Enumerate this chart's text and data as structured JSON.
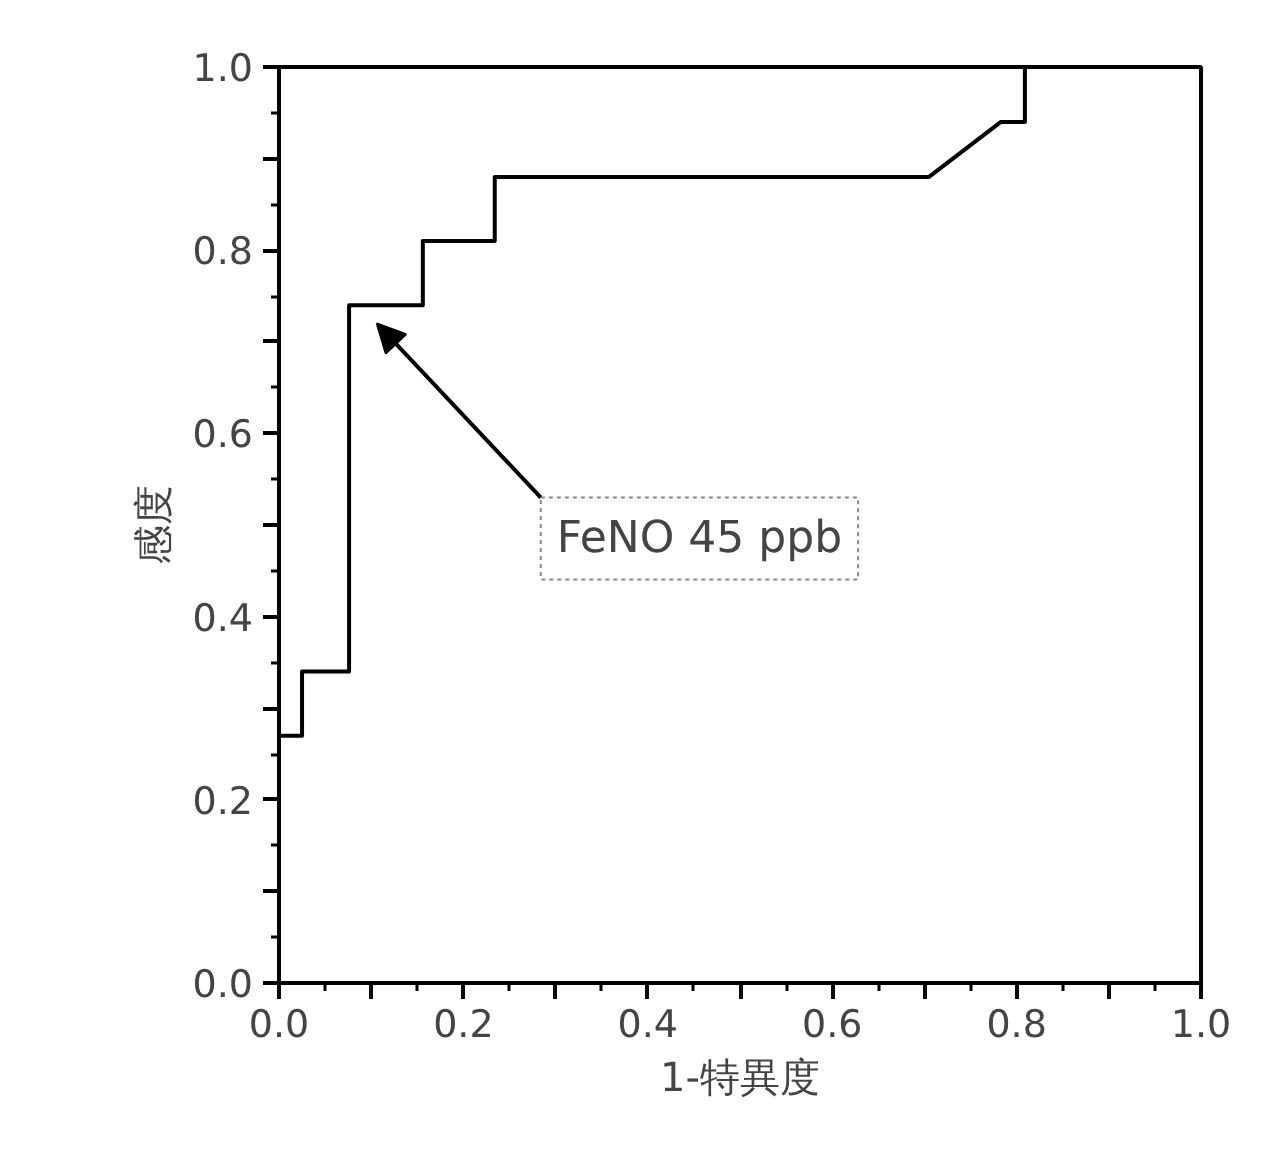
{
  "chart_data": {
    "type": "line",
    "x": [
      0,
      0.025,
      0.025,
      0.076,
      0.076,
      0.156,
      0.156,
      0.234,
      0.234,
      0.705,
      0.783,
      0.809,
      0.809,
      1.0
    ],
    "series": [
      {
        "color": "#000000",
        "values": [
          0.27,
          0.27,
          0.34,
          0.34,
          0.74,
          0.74,
          0.81,
          0.81,
          0.88,
          0.88,
          0.94,
          0.94,
          1.0,
          1.0
        ]
      }
    ],
    "xlim": [
      0,
      1
    ],
    "ylim": [
      0,
      1
    ],
    "xticks": [
      {
        "value": 0,
        "label": "0.0"
      },
      {
        "value": 0.1,
        "label": null
      },
      {
        "value": 0.2,
        "label": "0.2"
      },
      {
        "value": 0.3,
        "label": null
      },
      {
        "value": 0.4,
        "label": "0.4"
      },
      {
        "value": 0.5,
        "label": null
      },
      {
        "value": 0.6,
        "label": "0.6"
      },
      {
        "value": 0.7,
        "label": null
      },
      {
        "value": 0.8,
        "label": "0.8"
      },
      {
        "value": 0.9,
        "label": null
      },
      {
        "value": 1.0,
        "label": "1.0"
      }
    ],
    "yticks": [
      {
        "value": 0,
        "label": "0.0"
      },
      {
        "value": 0.1,
        "label": null
      },
      {
        "value": 0.2,
        "label": "0.2"
      },
      {
        "value": 0.3,
        "label": null
      },
      {
        "value": 0.4,
        "label": "0.4"
      },
      {
        "value": 0.5,
        "label": null
      },
      {
        "value": 0.6,
        "label": "0.6"
      },
      {
        "value": 0.7,
        "label": null
      },
      {
        "value": 0.8,
        "label": "0.8"
      },
      {
        "value": 0.9,
        "label": null
      },
      {
        "value": 1.0,
        "label": "1.0"
      }
    ],
    "xlabel": "1-特異度",
    "ylabel": "感度",
    "annotations": [
      "FeNO 45 ppb"
    ],
    "grid": false
  }
}
